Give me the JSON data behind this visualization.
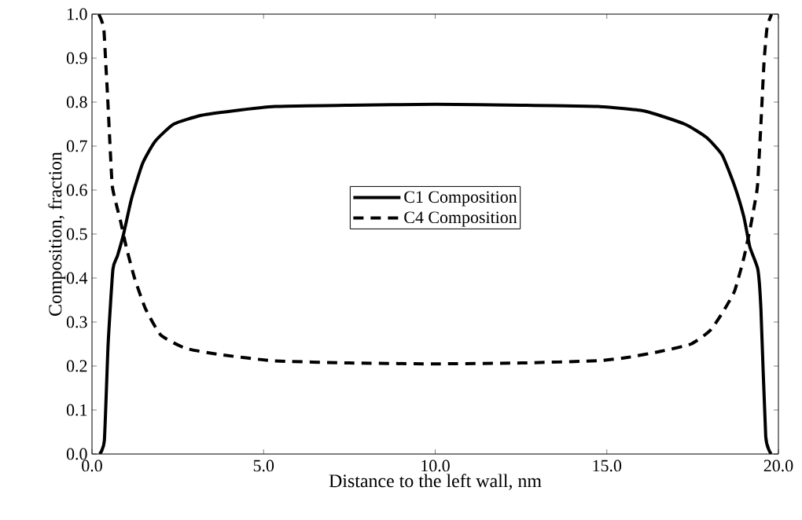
{
  "chart_data": {
    "type": "line",
    "xlabel": "Distance to the left wall, nm",
    "ylabel": "Composition, fraction",
    "xlim": [
      0,
      20
    ],
    "ylim": [
      0,
      1
    ],
    "xticks": [
      {
        "value": 0,
        "label": "0.0"
      },
      {
        "value": 5,
        "label": "5.0"
      },
      {
        "value": 10,
        "label": "10.0"
      },
      {
        "value": 15,
        "label": "15.0"
      },
      {
        "value": 20,
        "label": "20.0"
      }
    ],
    "yticks": [
      {
        "value": 0,
        "label": "0.0"
      },
      {
        "value": 0.1,
        "label": "0.1"
      },
      {
        "value": 0.2,
        "label": "0.2"
      },
      {
        "value": 0.3,
        "label": "0.3"
      },
      {
        "value": 0.4,
        "label": "0.4"
      },
      {
        "value": 0.5,
        "label": "0.5"
      },
      {
        "value": 0.6,
        "label": "0.6"
      },
      {
        "value": 0.7,
        "label": "0.7"
      },
      {
        "value": 0.8,
        "label": "0.8"
      },
      {
        "value": 0.9,
        "label": "0.9"
      },
      {
        "value": 1.0,
        "label": "1.0"
      }
    ],
    "legend": "center",
    "grid": false,
    "marker": "none",
    "series": [
      {
        "name": "C1 Composition",
        "color": "#000000",
        "line_style": "solid",
        "x": [
          0.22,
          0.36,
          0.47,
          0.61,
          0.74,
          0.92,
          1.15,
          1.47,
          1.83,
          2.38,
          3.19,
          4.1,
          5.34,
          7.5,
          10,
          12.5,
          14.73,
          16.09,
          17.27,
          17.9,
          18.36,
          18.72,
          18.99,
          19.17,
          19.4,
          19.49,
          19.63,
          19.79
        ],
        "values": [
          0.0,
          0.03,
          0.25,
          0.42,
          0.45,
          0.5,
          0.58,
          0.66,
          0.71,
          0.75,
          0.77,
          0.78,
          0.79,
          0.793,
          0.795,
          0.793,
          0.79,
          0.78,
          0.75,
          0.72,
          0.68,
          0.61,
          0.54,
          0.47,
          0.42,
          0.33,
          0.04,
          0.0
        ]
      },
      {
        "name": "C4 Composition",
        "color": "#000000",
        "line_style": "dashed",
        "x": [
          0.2,
          0.34,
          0.4,
          0.45,
          0.52,
          0.59,
          0.7,
          0.83,
          1.0,
          1.24,
          1.56,
          2.01,
          2.74,
          3.74,
          5.28,
          7.5,
          10,
          12.5,
          14.73,
          15.64,
          16.54,
          17.45,
          18.0,
          18.36,
          18.72,
          18.99,
          19.17,
          19.3,
          19.39,
          19.49,
          19.58,
          19.67,
          19.8
        ],
        "values": [
          1.0,
          0.97,
          0.89,
          0.82,
          0.71,
          0.61,
          0.57,
          0.53,
          0.47,
          0.4,
          0.33,
          0.27,
          0.24,
          0.226,
          0.212,
          0.207,
          0.205,
          0.207,
          0.212,
          0.22,
          0.233,
          0.25,
          0.28,
          0.32,
          0.37,
          0.445,
          0.51,
          0.565,
          0.61,
          0.75,
          0.89,
          0.97,
          1.0
        ]
      }
    ]
  }
}
